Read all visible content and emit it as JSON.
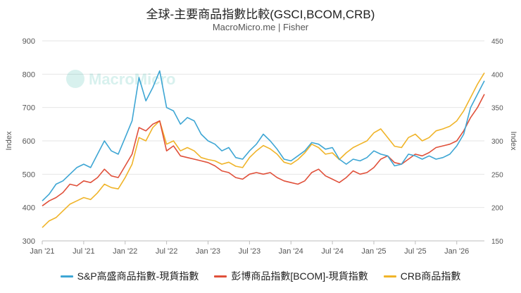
{
  "chart_data": {
    "type": "line",
    "title": "全球-主要商品指數比較(GSCI,BCOM,CRB)",
    "subtitle": "MacroMicro.me | Fisher",
    "watermark": "MacroMicro",
    "ylabel_left": "Index",
    "ylabel_right": "Index",
    "ylim_left": [
      300,
      900
    ],
    "ylim_right": [
      150,
      450
    ],
    "yticks_left": [
      300,
      400,
      500,
      600,
      700,
      800,
      900
    ],
    "yticks_right": [
      150,
      200,
      250,
      300,
      350,
      400,
      450
    ],
    "x_tick_labels": [
      "Jan '21",
      "Jul '21",
      "Jan '22",
      "Jul '22",
      "Jan '23",
      "Jul '23",
      "Jan '24",
      "Jul '24",
      "Jan '25",
      "Jul '25",
      "Jan '26"
    ],
    "x_ticks": [
      "2021-01",
      "2021-07",
      "2022-01",
      "2022-07",
      "2023-01",
      "2023-07",
      "2024-01",
      "2024-07",
      "2025-01",
      "2025-07",
      "2026-01"
    ],
    "x_range": [
      "2021-01",
      "2026-05"
    ],
    "grid": true,
    "legend_position": "bottom",
    "series": [
      {
        "name": "S&P高盛商品指數-現貨指數",
        "axis": "left",
        "color": "#3ea6d4",
        "points": [
          [
            "2021-01",
            420
          ],
          [
            "2021-02",
            440
          ],
          [
            "2021-03",
            470
          ],
          [
            "2021-04",
            480
          ],
          [
            "2021-05",
            500
          ],
          [
            "2021-06",
            520
          ],
          [
            "2021-07",
            530
          ],
          [
            "2021-08",
            520
          ],
          [
            "2021-09",
            560
          ],
          [
            "2021-10",
            600
          ],
          [
            "2021-11",
            570
          ],
          [
            "2021-12",
            560
          ],
          [
            "2022-01",
            610
          ],
          [
            "2022-02",
            660
          ],
          [
            "2022-03",
            790
          ],
          [
            "2022-04",
            720
          ],
          [
            "2022-05",
            760
          ],
          [
            "2022-06",
            810
          ],
          [
            "2022-07",
            700
          ],
          [
            "2022-08",
            690
          ],
          [
            "2022-09",
            650
          ],
          [
            "2022-10",
            670
          ],
          [
            "2022-11",
            660
          ],
          [
            "2022-12",
            620
          ],
          [
            "2023-01",
            600
          ],
          [
            "2023-02",
            590
          ],
          [
            "2023-03",
            570
          ],
          [
            "2023-04",
            580
          ],
          [
            "2023-05",
            550
          ],
          [
            "2023-06",
            545
          ],
          [
            "2023-07",
            570
          ],
          [
            "2023-08",
            590
          ],
          [
            "2023-09",
            620
          ],
          [
            "2023-10",
            600
          ],
          [
            "2023-11",
            575
          ],
          [
            "2023-12",
            545
          ],
          [
            "2024-01",
            540
          ],
          [
            "2024-02",
            555
          ],
          [
            "2024-03",
            570
          ],
          [
            "2024-04",
            595
          ],
          [
            "2024-05",
            590
          ],
          [
            "2024-06",
            575
          ],
          [
            "2024-07",
            580
          ],
          [
            "2024-08",
            545
          ],
          [
            "2024-09",
            530
          ],
          [
            "2024-10",
            545
          ],
          [
            "2024-11",
            540
          ],
          [
            "2024-12",
            550
          ],
          [
            "2025-01",
            570
          ],
          [
            "2025-02",
            560
          ],
          [
            "2025-03",
            555
          ],
          [
            "2025-04",
            525
          ],
          [
            "2025-05",
            530
          ],
          [
            "2025-06",
            560
          ],
          [
            "2025-07",
            555
          ],
          [
            "2025-08",
            545
          ],
          [
            "2025-09",
            555
          ],
          [
            "2025-10",
            545
          ],
          [
            "2025-11",
            550
          ],
          [
            "2025-12",
            560
          ],
          [
            "2026-01",
            585
          ],
          [
            "2026-02",
            620
          ],
          [
            "2026-03",
            700
          ],
          [
            "2026-04",
            740
          ],
          [
            "2026-05",
            780
          ]
        ]
      },
      {
        "name": "彭博商品指數[BCOM]-現貨指數",
        "axis": "left",
        "color": "#e0503a",
        "points": [
          [
            "2021-01",
            405
          ],
          [
            "2021-02",
            420
          ],
          [
            "2021-03",
            430
          ],
          [
            "2021-04",
            445
          ],
          [
            "2021-05",
            470
          ],
          [
            "2021-06",
            465
          ],
          [
            "2021-07",
            480
          ],
          [
            "2021-08",
            475
          ],
          [
            "2021-09",
            490
          ],
          [
            "2021-10",
            515
          ],
          [
            "2021-11",
            495
          ],
          [
            "2021-12",
            490
          ],
          [
            "2022-01",
            525
          ],
          [
            "2022-02",
            560
          ],
          [
            "2022-03",
            640
          ],
          [
            "2022-04",
            630
          ],
          [
            "2022-05",
            650
          ],
          [
            "2022-06",
            660
          ],
          [
            "2022-07",
            570
          ],
          [
            "2022-08",
            585
          ],
          [
            "2022-09",
            555
          ],
          [
            "2022-10",
            550
          ],
          [
            "2022-11",
            545
          ],
          [
            "2022-12",
            540
          ],
          [
            "2023-01",
            535
          ],
          [
            "2023-02",
            525
          ],
          [
            "2023-03",
            510
          ],
          [
            "2023-04",
            505
          ],
          [
            "2023-05",
            490
          ],
          [
            "2023-06",
            485
          ],
          [
            "2023-07",
            500
          ],
          [
            "2023-08",
            505
          ],
          [
            "2023-09",
            500
          ],
          [
            "2023-10",
            505
          ],
          [
            "2023-11",
            490
          ],
          [
            "2023-12",
            480
          ],
          [
            "2024-01",
            475
          ],
          [
            "2024-02",
            470
          ],
          [
            "2024-03",
            480
          ],
          [
            "2024-04",
            505
          ],
          [
            "2024-05",
            515
          ],
          [
            "2024-06",
            495
          ],
          [
            "2024-07",
            485
          ],
          [
            "2024-08",
            475
          ],
          [
            "2024-09",
            490
          ],
          [
            "2024-10",
            510
          ],
          [
            "2024-11",
            500
          ],
          [
            "2024-12",
            505
          ],
          [
            "2025-01",
            520
          ],
          [
            "2025-02",
            545
          ],
          [
            "2025-03",
            555
          ],
          [
            "2025-04",
            535
          ],
          [
            "2025-05",
            530
          ],
          [
            "2025-06",
            545
          ],
          [
            "2025-07",
            560
          ],
          [
            "2025-08",
            555
          ],
          [
            "2025-09",
            565
          ],
          [
            "2025-10",
            580
          ],
          [
            "2025-11",
            585
          ],
          [
            "2025-12",
            590
          ],
          [
            "2026-01",
            600
          ],
          [
            "2026-02",
            630
          ],
          [
            "2026-03",
            670
          ],
          [
            "2026-04",
            700
          ],
          [
            "2026-05",
            740
          ]
        ]
      },
      {
        "name": "CRB商品指數",
        "axis": "right",
        "color": "#f0b429",
        "points": [
          [
            "2021-01",
            170
          ],
          [
            "2021-02",
            180
          ],
          [
            "2021-03",
            185
          ],
          [
            "2021-04",
            195
          ],
          [
            "2021-05",
            205
          ],
          [
            "2021-06",
            210
          ],
          [
            "2021-07",
            215
          ],
          [
            "2021-08",
            212
          ],
          [
            "2021-09",
            222
          ],
          [
            "2021-10",
            235
          ],
          [
            "2021-11",
            230
          ],
          [
            "2021-12",
            228
          ],
          [
            "2022-01",
            245
          ],
          [
            "2022-02",
            265
          ],
          [
            "2022-03",
            305
          ],
          [
            "2022-04",
            300
          ],
          [
            "2022-05",
            320
          ],
          [
            "2022-06",
            330
          ],
          [
            "2022-07",
            295
          ],
          [
            "2022-08",
            300
          ],
          [
            "2022-09",
            285
          ],
          [
            "2022-10",
            290
          ],
          [
            "2022-11",
            285
          ],
          [
            "2022-12",
            275
          ],
          [
            "2023-01",
            272
          ],
          [
            "2023-02",
            270
          ],
          [
            "2023-03",
            265
          ],
          [
            "2023-04",
            268
          ],
          [
            "2023-05",
            262
          ],
          [
            "2023-06",
            260
          ],
          [
            "2023-07",
            275
          ],
          [
            "2023-08",
            285
          ],
          [
            "2023-09",
            293
          ],
          [
            "2023-10",
            288
          ],
          [
            "2023-11",
            280
          ],
          [
            "2023-12",
            268
          ],
          [
            "2024-01",
            265
          ],
          [
            "2024-02",
            272
          ],
          [
            "2024-03",
            282
          ],
          [
            "2024-04",
            295
          ],
          [
            "2024-05",
            290
          ],
          [
            "2024-06",
            280
          ],
          [
            "2024-07",
            282
          ],
          [
            "2024-08",
            272
          ],
          [
            "2024-09",
            282
          ],
          [
            "2024-10",
            290
          ],
          [
            "2024-11",
            295
          ],
          [
            "2024-12",
            300
          ],
          [
            "2025-01",
            312
          ],
          [
            "2025-02",
            318
          ],
          [
            "2025-03",
            305
          ],
          [
            "2025-04",
            292
          ],
          [
            "2025-05",
            290
          ],
          [
            "2025-06",
            305
          ],
          [
            "2025-07",
            310
          ],
          [
            "2025-08",
            300
          ],
          [
            "2025-09",
            305
          ],
          [
            "2025-10",
            315
          ],
          [
            "2025-11",
            318
          ],
          [
            "2025-12",
            322
          ],
          [
            "2026-01",
            330
          ],
          [
            "2026-02",
            345
          ],
          [
            "2026-03",
            365
          ],
          [
            "2026-04",
            385
          ],
          [
            "2026-05",
            402
          ]
        ]
      }
    ]
  }
}
